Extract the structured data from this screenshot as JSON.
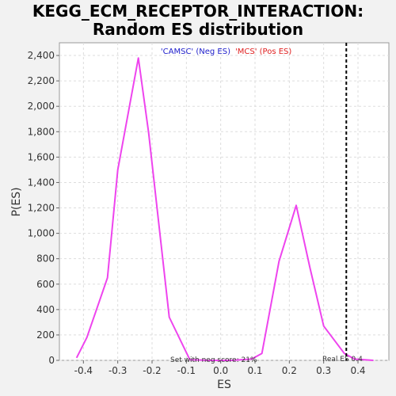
{
  "chart_data": {
    "type": "line",
    "title_line1": "KEGG_ECM_RECEPTOR_INTERACTION:",
    "title_line2": "Random ES distribution",
    "xlabel": "ES",
    "ylabel": "P(ES)",
    "xlim": [
      -0.47,
      0.49
    ],
    "ylim": [
      0,
      2500
    ],
    "x_ticks": [
      -0.4,
      -0.3,
      -0.2,
      -0.1,
      0.0,
      0.1,
      0.2,
      0.3,
      0.4
    ],
    "x_tick_labels": [
      "-0.4",
      "-0.3",
      "-0.2",
      "-0.1",
      "0.0",
      "0.1",
      "0.2",
      "0.3",
      "0.4"
    ],
    "y_ticks": [
      0,
      200,
      400,
      600,
      800,
      1000,
      1200,
      1400,
      1600,
      1800,
      2000,
      2200,
      2400
    ],
    "y_tick_labels": [
      "0",
      "200",
      "400",
      "600",
      "800",
      "1,000",
      "1,200",
      "1,400",
      "1,600",
      "1,800",
      "2,000",
      "2,200",
      "2,400"
    ],
    "grid": true,
    "series": [
      {
        "color": "#ee44ee",
        "x": [
          -0.42,
          -0.39,
          -0.33,
          -0.3,
          -0.24,
          -0.21,
          -0.15,
          -0.09,
          -0.03,
          0.03,
          0.09,
          0.12,
          0.17,
          0.22,
          0.26,
          0.3,
          0.36,
          0.39,
          0.445
        ],
        "y": [
          20,
          180,
          650,
          1500,
          2380,
          1790,
          340,
          5,
          0,
          0,
          10,
          55,
          780,
          1220,
          730,
          270,
          55,
          10,
          0
        ]
      }
    ],
    "real_es_line": {
      "x": 0.366,
      "color": "#000000",
      "style": "dashed"
    },
    "legend": {
      "neg_label": "'CAMSC' (Neg ES)",
      "neg_color": "#2020cc",
      "pos_label": "'MCS' (Pos ES)",
      "pos_color": "#e02020",
      "placement": "top-center"
    },
    "annotations": {
      "left": "Set with neg score: 21%",
      "right": "Real ES 0.4"
    }
  }
}
